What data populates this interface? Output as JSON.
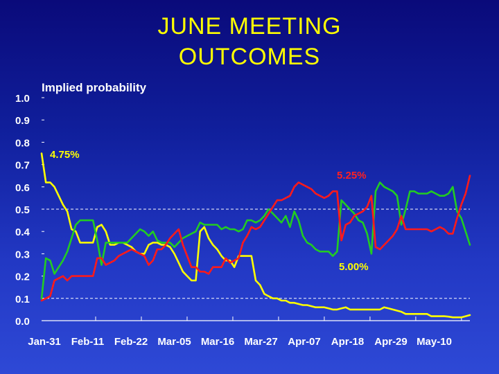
{
  "title_line1": "JUNE MEETING",
  "title_line2": "OUTCOMES",
  "chart_data": {
    "type": "line",
    "ylabel": "Implied probability",
    "ylim": [
      0,
      1.0
    ],
    "y_ticks": [
      "1.0",
      "0.9",
      "0.8",
      "0.7",
      "0.6",
      "0.5",
      "0.4",
      "0.3",
      "0.2",
      "0.1",
      "0.0"
    ],
    "x_tick_labels": [
      "Jan-31",
      "Feb-11",
      "Feb-22",
      "Mar-05",
      "Mar-16",
      "Mar-27",
      "Apr-07",
      "Apr-18",
      "Apr-29",
      "May-10"
    ],
    "x_start": "Jan-31",
    "x_end": "May-16",
    "dashed_gridlines": [
      0.5,
      0.1
    ],
    "colors": {
      "yellow": "#ffff00",
      "red": "#ff1a1a",
      "green": "#22cc22",
      "grid": "#ffffff"
    },
    "annotations": [
      {
        "text": "4.75%",
        "color": "#ffff00"
      },
      {
        "text": "5.25%",
        "color": "#ff2020"
      },
      {
        "text": "5.00%",
        "color": "#ffff00"
      }
    ],
    "series": [
      {
        "color": "#ffff00",
        "points": [
          [
            0,
            0.75
          ],
          [
            1,
            0.62
          ],
          [
            2,
            0.62
          ],
          [
            3,
            0.6
          ],
          [
            4,
            0.56
          ],
          [
            5,
            0.52
          ],
          [
            6,
            0.49
          ],
          [
            7,
            0.41
          ],
          [
            8,
            0.4
          ],
          [
            9,
            0.35
          ],
          [
            10,
            0.35
          ],
          [
            11,
            0.35
          ],
          [
            12,
            0.35
          ],
          [
            13,
            0.42
          ],
          [
            14,
            0.43
          ],
          [
            15,
            0.4
          ],
          [
            16,
            0.34
          ],
          [
            17,
            0.34
          ],
          [
            18,
            0.35
          ],
          [
            19,
            0.35
          ],
          [
            20,
            0.34
          ],
          [
            21,
            0.33
          ],
          [
            22,
            0.31
          ],
          [
            23,
            0.3
          ],
          [
            24,
            0.3
          ],
          [
            25,
            0.34
          ],
          [
            26,
            0.35
          ],
          [
            27,
            0.35
          ],
          [
            28,
            0.34
          ],
          [
            29,
            0.34
          ],
          [
            30,
            0.33
          ],
          [
            31,
            0.3
          ],
          [
            32,
            0.26
          ],
          [
            33,
            0.22
          ],
          [
            34,
            0.2
          ],
          [
            35,
            0.18
          ],
          [
            36,
            0.18
          ],
          [
            37,
            0.4
          ],
          [
            38,
            0.42
          ],
          [
            39,
            0.37
          ],
          [
            40,
            0.34
          ],
          [
            41,
            0.32
          ],
          [
            42,
            0.29
          ],
          [
            43,
            0.27
          ],
          [
            44,
            0.27
          ],
          [
            45,
            0.24
          ],
          [
            46,
            0.29
          ],
          [
            47,
            0.29
          ],
          [
            48,
            0.29
          ],
          [
            49,
            0.29
          ],
          [
            50,
            0.18
          ],
          [
            51,
            0.16
          ],
          [
            52,
            0.12
          ],
          [
            53,
            0.11
          ],
          [
            54,
            0.1
          ],
          [
            55,
            0.1
          ],
          [
            56,
            0.09
          ],
          [
            57,
            0.09
          ],
          [
            58,
            0.08
          ],
          [
            59,
            0.08
          ],
          [
            60,
            0.075
          ],
          [
            61,
            0.07
          ],
          [
            62,
            0.07
          ],
          [
            63,
            0.065
          ],
          [
            64,
            0.06
          ],
          [
            65,
            0.06
          ],
          [
            66,
            0.06
          ],
          [
            67,
            0.055
          ],
          [
            68,
            0.05
          ],
          [
            69,
            0.05
          ],
          [
            70,
            0.055
          ],
          [
            71,
            0.06
          ],
          [
            72,
            0.05
          ],
          [
            73,
            0.05
          ],
          [
            74,
            0.05
          ],
          [
            75,
            0.05
          ],
          [
            76,
            0.05
          ],
          [
            77,
            0.05
          ],
          [
            78,
            0.05
          ],
          [
            79,
            0.05
          ],
          [
            80,
            0.06
          ],
          [
            81,
            0.055
          ],
          [
            82,
            0.05
          ],
          [
            83,
            0.045
          ],
          [
            84,
            0.04
          ],
          [
            85,
            0.03
          ],
          [
            86,
            0.03
          ],
          [
            87,
            0.03
          ],
          [
            88,
            0.03
          ],
          [
            89,
            0.03
          ],
          [
            90,
            0.03
          ],
          [
            91,
            0.02
          ],
          [
            92,
            0.02
          ],
          [
            93,
            0.02
          ],
          [
            94,
            0.02
          ],
          [
            95,
            0.018
          ],
          [
            96,
            0.015
          ],
          [
            97,
            0.015
          ],
          [
            98,
            0.015
          ],
          [
            99,
            0.02
          ],
          [
            100,
            0.025
          ]
        ]
      },
      {
        "color": "#22cc22",
        "points": [
          [
            0,
            0.1
          ],
          [
            1,
            0.28
          ],
          [
            2,
            0.27
          ],
          [
            3,
            0.21
          ],
          [
            4,
            0.24
          ],
          [
            5,
            0.27
          ],
          [
            6,
            0.31
          ],
          [
            7,
            0.37
          ],
          [
            8,
            0.43
          ],
          [
            9,
            0.45
          ],
          [
            10,
            0.45
          ],
          [
            11,
            0.45
          ],
          [
            12,
            0.45
          ],
          [
            13,
            0.36
          ],
          [
            14,
            0.25
          ],
          [
            15,
            0.35
          ],
          [
            16,
            0.35
          ],
          [
            17,
            0.35
          ],
          [
            18,
            0.35
          ],
          [
            19,
            0.35
          ],
          [
            20,
            0.35
          ],
          [
            21,
            0.37
          ],
          [
            22,
            0.39
          ],
          [
            23,
            0.41
          ],
          [
            24,
            0.4
          ],
          [
            25,
            0.38
          ],
          [
            26,
            0.4
          ],
          [
            27,
            0.36
          ],
          [
            28,
            0.35
          ],
          [
            29,
            0.35
          ],
          [
            30,
            0.35
          ],
          [
            31,
            0.33
          ],
          [
            32,
            0.35
          ],
          [
            33,
            0.37
          ],
          [
            34,
            0.38
          ],
          [
            35,
            0.39
          ],
          [
            36,
            0.4
          ],
          [
            37,
            0.44
          ],
          [
            38,
            0.43
          ],
          [
            39,
            0.43
          ],
          [
            40,
            0.43
          ],
          [
            41,
            0.43
          ],
          [
            42,
            0.41
          ],
          [
            43,
            0.42
          ],
          [
            44,
            0.41
          ],
          [
            45,
            0.41
          ],
          [
            46,
            0.4
          ],
          [
            47,
            0.41
          ],
          [
            48,
            0.45
          ],
          [
            49,
            0.45
          ],
          [
            50,
            0.44
          ],
          [
            51,
            0.45
          ],
          [
            52,
            0.47
          ],
          [
            53,
            0.5
          ],
          [
            54,
            0.48
          ],
          [
            55,
            0.46
          ],
          [
            56,
            0.44
          ],
          [
            57,
            0.47
          ],
          [
            58,
            0.42
          ],
          [
            59,
            0.49
          ],
          [
            60,
            0.45
          ],
          [
            61,
            0.38
          ],
          [
            62,
            0.35
          ],
          [
            63,
            0.34
          ],
          [
            64,
            0.32
          ],
          [
            65,
            0.31
          ],
          [
            66,
            0.31
          ],
          [
            67,
            0.31
          ],
          [
            68,
            0.29
          ],
          [
            69,
            0.31
          ],
          [
            70,
            0.54
          ],
          [
            71,
            0.52
          ],
          [
            72,
            0.5
          ],
          [
            73,
            0.48
          ],
          [
            74,
            0.45
          ],
          [
            75,
            0.44
          ],
          [
            76,
            0.39
          ],
          [
            77,
            0.3
          ],
          [
            78,
            0.58
          ],
          [
            79,
            0.62
          ],
          [
            80,
            0.6
          ],
          [
            81,
            0.59
          ],
          [
            82,
            0.58
          ],
          [
            83,
            0.56
          ],
          [
            84,
            0.43
          ],
          [
            85,
            0.5
          ],
          [
            86,
            0.58
          ],
          [
            87,
            0.58
          ],
          [
            88,
            0.57
          ],
          [
            89,
            0.57
          ],
          [
            90,
            0.57
          ],
          [
            91,
            0.58
          ],
          [
            92,
            0.57
          ],
          [
            93,
            0.56
          ],
          [
            94,
            0.56
          ],
          [
            95,
            0.57
          ],
          [
            96,
            0.6
          ],
          [
            97,
            0.49
          ],
          [
            98,
            0.46
          ],
          [
            99,
            0.4
          ],
          [
            100,
            0.34
          ]
        ]
      },
      {
        "color": "#ff1a1a",
        "points": [
          [
            0,
            0.09
          ],
          [
            1,
            0.1
          ],
          [
            2,
            0.11
          ],
          [
            3,
            0.18
          ],
          [
            4,
            0.19
          ],
          [
            5,
            0.2
          ],
          [
            6,
            0.18
          ],
          [
            7,
            0.2
          ],
          [
            8,
            0.2
          ],
          [
            9,
            0.2
          ],
          [
            10,
            0.2
          ],
          [
            11,
            0.2
          ],
          [
            12,
            0.2
          ],
          [
            13,
            0.28
          ],
          [
            14,
            0.28
          ],
          [
            15,
            0.25
          ],
          [
            16,
            0.26
          ],
          [
            17,
            0.27
          ],
          [
            18,
            0.29
          ],
          [
            19,
            0.3
          ],
          [
            20,
            0.31
          ],
          [
            21,
            0.32
          ],
          [
            22,
            0.31
          ],
          [
            23,
            0.3
          ],
          [
            24,
            0.29
          ],
          [
            25,
            0.25
          ],
          [
            26,
            0.27
          ],
          [
            27,
            0.32
          ],
          [
            28,
            0.32
          ],
          [
            29,
            0.34
          ],
          [
            30,
            0.37
          ],
          [
            31,
            0.39
          ],
          [
            32,
            0.41
          ],
          [
            33,
            0.34
          ],
          [
            34,
            0.29
          ],
          [
            35,
            0.24
          ],
          [
            36,
            0.24
          ],
          [
            37,
            0.22
          ],
          [
            38,
            0.22
          ],
          [
            39,
            0.21
          ],
          [
            40,
            0.24
          ],
          [
            41,
            0.24
          ],
          [
            42,
            0.24
          ],
          [
            43,
            0.28
          ],
          [
            44,
            0.26
          ],
          [
            45,
            0.27
          ],
          [
            46,
            0.28
          ],
          [
            47,
            0.35
          ],
          [
            48,
            0.38
          ],
          [
            49,
            0.42
          ],
          [
            50,
            0.41
          ],
          [
            51,
            0.42
          ],
          [
            52,
            0.45
          ],
          [
            53,
            0.48
          ],
          [
            54,
            0.51
          ],
          [
            55,
            0.54
          ],
          [
            56,
            0.54
          ],
          [
            57,
            0.55
          ],
          [
            58,
            0.56
          ],
          [
            59,
            0.6
          ],
          [
            60,
            0.62
          ],
          [
            61,
            0.61
          ],
          [
            62,
            0.6
          ],
          [
            63,
            0.59
          ],
          [
            64,
            0.57
          ],
          [
            65,
            0.56
          ],
          [
            66,
            0.55
          ],
          [
            67,
            0.56
          ],
          [
            68,
            0.58
          ],
          [
            69,
            0.58
          ],
          [
            70,
            0.36
          ],
          [
            71,
            0.43
          ],
          [
            72,
            0.44
          ],
          [
            73,
            0.47
          ],
          [
            74,
            0.48
          ],
          [
            75,
            0.49
          ],
          [
            76,
            0.51
          ],
          [
            77,
            0.56
          ],
          [
            78,
            0.33
          ],
          [
            79,
            0.32
          ],
          [
            80,
            0.34
          ],
          [
            81,
            0.36
          ],
          [
            82,
            0.38
          ],
          [
            83,
            0.41
          ],
          [
            84,
            0.47
          ],
          [
            85,
            0.41
          ],
          [
            86,
            0.41
          ],
          [
            87,
            0.41
          ],
          [
            88,
            0.41
          ],
          [
            89,
            0.41
          ],
          [
            90,
            0.41
          ],
          [
            91,
            0.4
          ],
          [
            92,
            0.41
          ],
          [
            93,
            0.42
          ],
          [
            94,
            0.41
          ],
          [
            95,
            0.39
          ],
          [
            96,
            0.39
          ],
          [
            97,
            0.46
          ],
          [
            98,
            0.52
          ],
          [
            99,
            0.57
          ],
          [
            100,
            0.65
          ]
        ]
      }
    ]
  }
}
